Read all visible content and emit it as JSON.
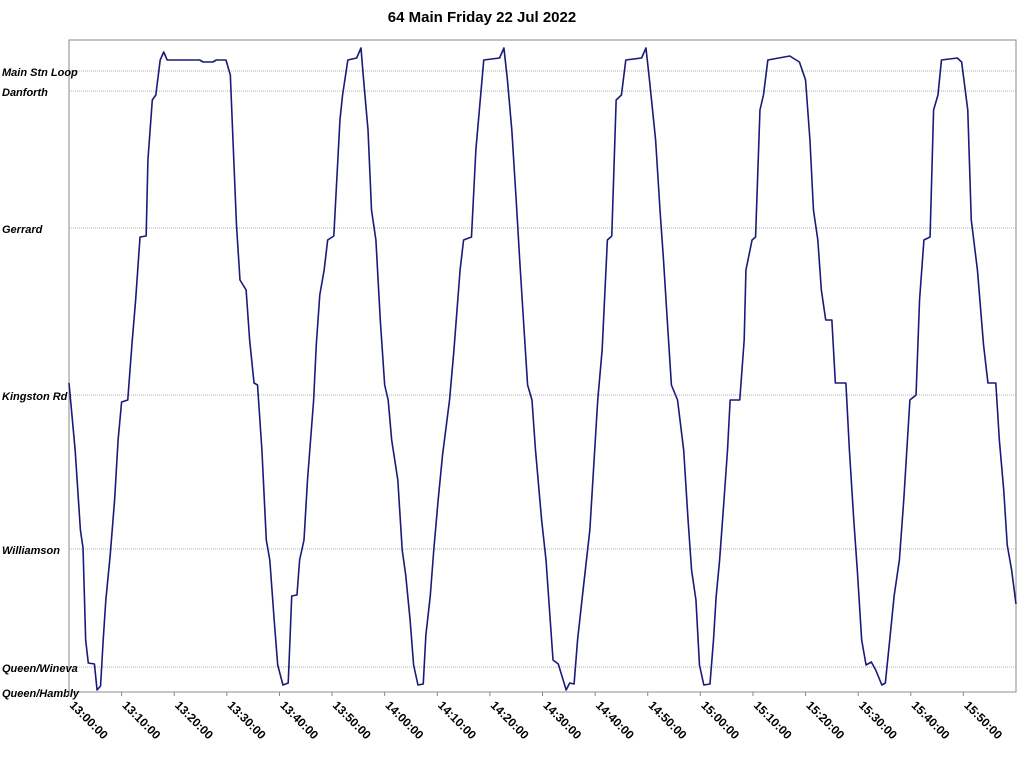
{
  "chart_data": {
    "type": "line",
    "title": "64 Main Friday 22 Jul 2022",
    "color": "#1a1a7a",
    "grid": true,
    "xlim": [
      "13:00:00",
      "16:00:00"
    ],
    "xticks": [
      "13:00:00",
      "13:10:00",
      "13:20:00",
      "13:30:00",
      "13:40:00",
      "13:50:00",
      "14:00:00",
      "14:10:00",
      "14:20:00",
      "14:30:00",
      "14:40:00",
      "14:50:00",
      "15:00:00",
      "15:10:00",
      "15:20:00",
      "15:30:00",
      "15:40:00",
      "15:50:00"
    ],
    "ylim": [
      0,
      6.52
    ],
    "yticks": [
      {
        "value": 0,
        "label": "Queen/Hambly"
      },
      {
        "value": 0.25,
        "label": "Queen/Wineva"
      },
      {
        "value": 1.43,
        "label": "Williamson"
      },
      {
        "value": 2.97,
        "label": "Kingston Rd"
      },
      {
        "value": 4.64,
        "label": "Gerrard"
      },
      {
        "value": 6.01,
        "label": "Danforth"
      },
      {
        "value": 6.21,
        "label": "Main Stn Loop"
      }
    ],
    "x": [
      "13:00:00",
      "13:01:10",
      "13:02:10",
      "13:02:40",
      "13:03:10",
      "13:03:40",
      "13:04:50",
      "13:05:20",
      "13:06:00",
      "13:06:30",
      "13:07:00",
      "13:07:50",
      "13:08:40",
      "13:09:20",
      "13:10:00",
      "13:11:10",
      "13:12:00",
      "13:12:40",
      "13:13:30",
      "13:14:40",
      "13:15:00",
      "13:15:50",
      "13:16:30",
      "13:17:20",
      "13:18:00",
      "13:18:40",
      "13:24:50",
      "13:25:30",
      "13:27:20",
      "13:28:00",
      "13:29:50",
      "13:30:40",
      "13:31:10",
      "13:31:50",
      "13:32:30",
      "13:33:40",
      "13:34:20",
      "13:35:10",
      "13:35:50",
      "13:36:40",
      "13:37:30",
      "13:38:10",
      "13:39:00",
      "13:39:40",
      "13:40:40",
      "13:41:40",
      "13:42:00",
      "13:42:20",
      "13:43:20",
      "13:43:50",
      "13:44:40",
      "13:45:20",
      "13:46:30",
      "13:47:00",
      "13:47:40",
      "13:48:30",
      "13:49:10",
      "13:50:20",
      "13:51:30",
      "13:52:00",
      "13:53:00",
      "13:54:40",
      "13:55:30",
      "13:56:00",
      "13:56:50",
      "13:57:30",
      "13:58:20",
      "13:59:10",
      "14:00:00",
      "14:00:40",
      "14:01:20",
      "14:02:30",
      "14:03:20",
      "14:04:00",
      "14:04:50",
      "14:05:30",
      "14:06:20",
      "14:07:20",
      "14:07:50",
      "14:08:40",
      "14:09:20",
      "14:10:10",
      "14:11:00",
      "14:12:20",
      "14:13:10",
      "14:14:20",
      "14:15:00",
      "14:16:30",
      "14:17:20",
      "14:18:10",
      "14:18:50",
      "14:21:50",
      "14:22:40",
      "14:23:20",
      "14:24:10",
      "14:25:00",
      "14:25:40",
      "14:26:30",
      "14:27:10",
      "14:28:00",
      "14:28:40",
      "14:29:50",
      "14:30:40",
      "14:31:20",
      "14:32:00",
      "14:33:00",
      "14:34:30",
      "14:35:10",
      "14:36:00",
      "14:36:40",
      "14:37:30",
      "14:39:00",
      "14:40:30",
      "14:41:20",
      "14:42:20",
      "14:43:10",
      "14:44:00",
      "14:45:00",
      "14:45:50",
      "14:48:50",
      "14:49:40",
      "14:50:20",
      "14:51:30",
      "14:52:20",
      "14:53:00",
      "14:53:50",
      "14:54:30",
      "14:55:40",
      "14:56:50",
      "14:57:40",
      "14:58:20",
      "14:59:10",
      "14:59:50",
      "15:00:40",
      "15:01:50",
      "15:02:30",
      "15:03:00",
      "15:03:40",
      "15:04:30",
      "15:05:10",
      "15:05:40",
      "15:07:30",
      "15:08:20",
      "15:08:40",
      "15:09:50",
      "15:10:30",
      "15:11:20",
      "15:12:00",
      "15:12:50",
      "15:17:00",
      "15:18:50",
      "15:20:00",
      "15:20:50",
      "15:21:30",
      "15:22:20",
      "15:23:00",
      "15:23:50",
      "15:25:00",
      "15:25:40",
      "15:27:40",
      "15:28:20",
      "15:29:10",
      "15:29:50",
      "15:30:40",
      "15:31:30",
      "15:32:30",
      "15:33:20",
      "15:34:30",
      "15:35:10",
      "15:36:00",
      "15:36:50",
      "15:37:50",
      "15:38:40",
      "15:39:50",
      "15:41:00",
      "15:41:40",
      "15:42:30",
      "15:43:40",
      "15:44:20",
      "15:45:10",
      "15:45:50",
      "15:48:50",
      "15:49:40",
      "15:50:50",
      "15:51:30",
      "15:52:40",
      "15:53:50",
      "15:54:40",
      "15:56:10",
      "15:56:50",
      "15:57:40",
      "15:58:20",
      "15:59:10",
      "16:00:00"
    ],
    "values": [
      3.09,
      2.42,
      1.62,
      1.44,
      0.52,
      0.29,
      0.28,
      0.02,
      0.06,
      0.52,
      0.92,
      1.37,
      1.92,
      2.52,
      2.9,
      2.92,
      3.5,
      3.92,
      4.55,
      4.56,
      5.32,
      5.92,
      5.97,
      6.32,
      6.4,
      6.32,
      6.32,
      6.3,
      6.3,
      6.32,
      6.32,
      6.17,
      5.52,
      4.67,
      4.12,
      4.02,
      3.52,
      3.09,
      3.07,
      2.42,
      1.52,
      1.32,
      0.72,
      0.27,
      0.07,
      0.09,
      0.52,
      0.96,
      0.97,
      1.32,
      1.52,
      2.12,
      2.92,
      3.47,
      3.97,
      4.22,
      4.52,
      4.56,
      5.72,
      5.97,
      6.32,
      6.34,
      6.44,
      6.12,
      5.62,
      4.82,
      4.52,
      3.72,
      3.07,
      2.92,
      2.52,
      2.12,
      1.42,
      1.17,
      0.72,
      0.27,
      0.07,
      0.08,
      0.57,
      0.96,
      1.42,
      1.92,
      2.37,
      2.92,
      3.42,
      4.22,
      4.52,
      4.55,
      5.42,
      5.92,
      6.32,
      6.34,
      6.44,
      6.12,
      5.62,
      4.92,
      4.32,
      3.62,
      3.07,
      2.92,
      2.42,
      1.72,
      1.32,
      0.82,
      0.32,
      0.28,
      0.02,
      0.09,
      0.08,
      0.52,
      0.92,
      1.62,
      2.92,
      3.42,
      4.52,
      4.56,
      5.92,
      5.97,
      6.32,
      6.34,
      6.44,
      6.12,
      5.52,
      4.82,
      4.32,
      3.62,
      3.07,
      2.92,
      2.42,
      1.72,
      1.22,
      0.92,
      0.27,
      0.07,
      0.08,
      0.52,
      0.95,
      1.32,
      1.92,
      2.42,
      2.92,
      2.92,
      3.52,
      4.22,
      4.52,
      4.55,
      5.82,
      5.97,
      6.32,
      6.36,
      6.3,
      6.12,
      5.52,
      4.82,
      4.52,
      4.02,
      3.72,
      3.72,
      3.09,
      3.09,
      2.42,
      1.72,
      1.22,
      0.52,
      0.27,
      0.3,
      0.22,
      0.07,
      0.09,
      0.52,
      0.96,
      1.32,
      1.92,
      2.92,
      2.97,
      3.92,
      4.52,
      4.55,
      5.82,
      5.97,
      6.32,
      6.34,
      6.3,
      5.82,
      4.72,
      4.22,
      3.47,
      3.09,
      3.09,
      2.52,
      2.02,
      1.47,
      1.22,
      0.88
    ]
  }
}
